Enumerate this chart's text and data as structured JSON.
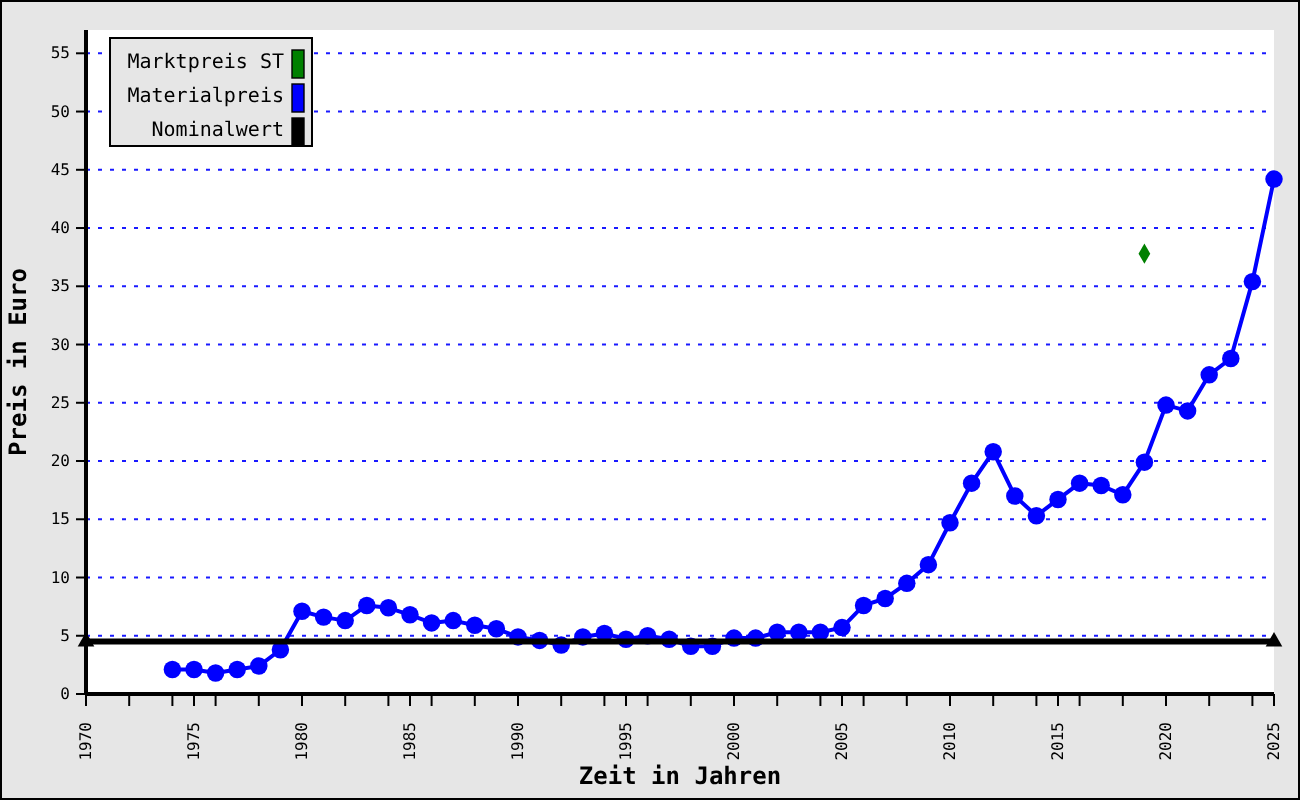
{
  "chart_data": {
    "type": "line",
    "xlabel": "Zeit in Jahren",
    "ylabel": "Preis in Euro",
    "xlim": [
      1970,
      2025
    ],
    "xticks": [
      1970,
      {
        "value": 1972,
        "label": null
      },
      {
        "value": 1974,
        "label": null
      },
      1975,
      {
        "value": 1976,
        "label": null
      },
      {
        "value": 1978,
        "label": null
      },
      1980,
      {
        "value": 1982,
        "label": null
      },
      {
        "value": 1984,
        "label": null
      },
      1985,
      {
        "value": 1986,
        "label": null
      },
      {
        "value": 1988,
        "label": null
      },
      1990,
      {
        "value": 1992,
        "label": null
      },
      {
        "value": 1994,
        "label": null
      },
      1995,
      {
        "value": 1996,
        "label": null
      },
      {
        "value": 1998,
        "label": null
      },
      2000,
      {
        "value": 2002,
        "label": null
      },
      {
        "value": 2004,
        "label": null
      },
      2005,
      {
        "value": 2006,
        "label": null
      },
      {
        "value": 2008,
        "label": null
      },
      2010,
      {
        "value": 2012,
        "label": null
      },
      {
        "value": 2014,
        "label": null
      },
      2015,
      {
        "value": 2016,
        "label": null
      },
      {
        "value": 2018,
        "label": null
      },
      2020,
      {
        "value": 2022,
        "label": null
      },
      {
        "value": 2024,
        "label": null
      },
      2025
    ],
    "ylim": [
      0,
      57
    ],
    "yticks": [
      0,
      5,
      10,
      15,
      20,
      25,
      30,
      35,
      40,
      45,
      50,
      55
    ],
    "grid": "y",
    "legend": "top left",
    "series": [
      {
        "name": "Marktpreis ST",
        "color": "#008000",
        "type": "scatter",
        "marker": "diamond",
        "x": [
          2019
        ],
        "values": [
          37.8
        ]
      },
      {
        "name": "Materialpreis",
        "color": "#0000ff",
        "marker": "circle",
        "x": [
          1974,
          1975,
          1976,
          1977,
          1978,
          1979,
          1980,
          1981,
          1982,
          1983,
          1984,
          1985,
          1986,
          1987,
          1988,
          1989,
          1990,
          1991,
          1992,
          1993,
          1994,
          1995,
          1996,
          1997,
          1998,
          1999,
          2000,
          2001,
          2002,
          2003,
          2004,
          2005,
          2006,
          2007,
          2008,
          2009,
          2010,
          2011,
          2012,
          2013,
          2014,
          2015,
          2016,
          2017,
          2018,
          2019,
          2020,
          2021,
          2022,
          2023,
          2024,
          2025
        ],
        "values": [
          2.1,
          2.1,
          1.8,
          2.1,
          2.4,
          3.8,
          7.1,
          6.6,
          6.3,
          7.6,
          7.4,
          6.8,
          6.1,
          6.3,
          5.9,
          5.6,
          4.9,
          4.6,
          4.2,
          4.9,
          5.2,
          4.7,
          5.0,
          4.7,
          4.1,
          4.1,
          4.8,
          4.8,
          5.3,
          5.3,
          5.3,
          5.7,
          7.6,
          8.2,
          9.5,
          11.1,
          14.7,
          18.1,
          20.8,
          17.0,
          15.3,
          16.7,
          18.1,
          17.9,
          17.1,
          19.9,
          24.8,
          24.3,
          27.4,
          28.8,
          35.4,
          44.2
        ]
      },
      {
        "name": "Nominalwert",
        "color": "#000000",
        "type": "line",
        "marker": "triangle",
        "x": [
          1970,
          2025
        ],
        "values": [
          4.5,
          4.5
        ]
      }
    ]
  }
}
